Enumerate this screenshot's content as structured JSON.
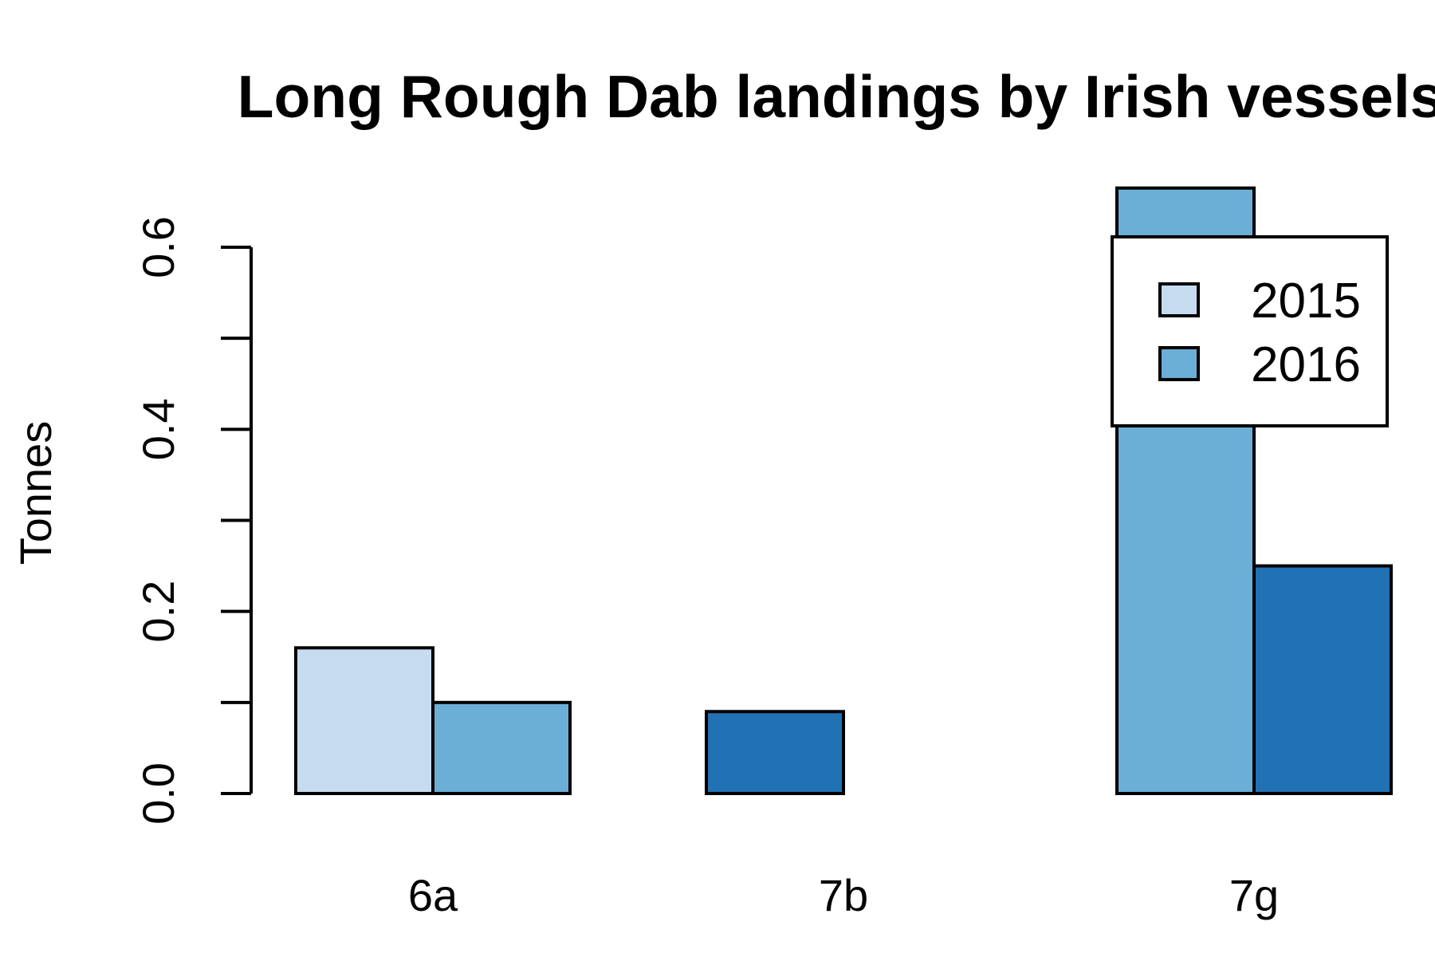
{
  "chart_data": {
    "type": "bar",
    "title": "Long Rough Dab landings by Irish vessels",
    "xlabel": "",
    "ylabel": "Tonnes",
    "categories": [
      "6a",
      "7b",
      "7g"
    ],
    "ylim": [
      0,
      0.6
    ],
    "yticks": [
      "0.0",
      "0.2",
      "0.4",
      "0.6"
    ],
    "ytick_values": [
      0,
      0.1,
      0.2,
      0.3,
      0.4,
      0.5,
      0.6
    ],
    "ytick_label_values": [
      0,
      0.2,
      0.4,
      0.6
    ],
    "grid": false,
    "legend_position": "top-right",
    "bars": [
      {
        "category": "6a",
        "value": 0.16,
        "color": "#c6dbef"
      },
      {
        "category": "6a",
        "value": 0.1,
        "color": "#6baed6"
      },
      {
        "category": "7b",
        "value": 0.09,
        "color": "#2171b5"
      },
      {
        "category": "7b",
        "value": 0.0,
        "color": "#c6dbef"
      },
      {
        "category": "7g",
        "value": 0.665,
        "color": "#6baed6"
      },
      {
        "category": "7g",
        "value": 0.25,
        "color": "#2171b5"
      }
    ],
    "legend": [
      {
        "label": "2015",
        "color": "#c6dbef"
      },
      {
        "label": "2016",
        "color": "#6baed6"
      }
    ]
  }
}
